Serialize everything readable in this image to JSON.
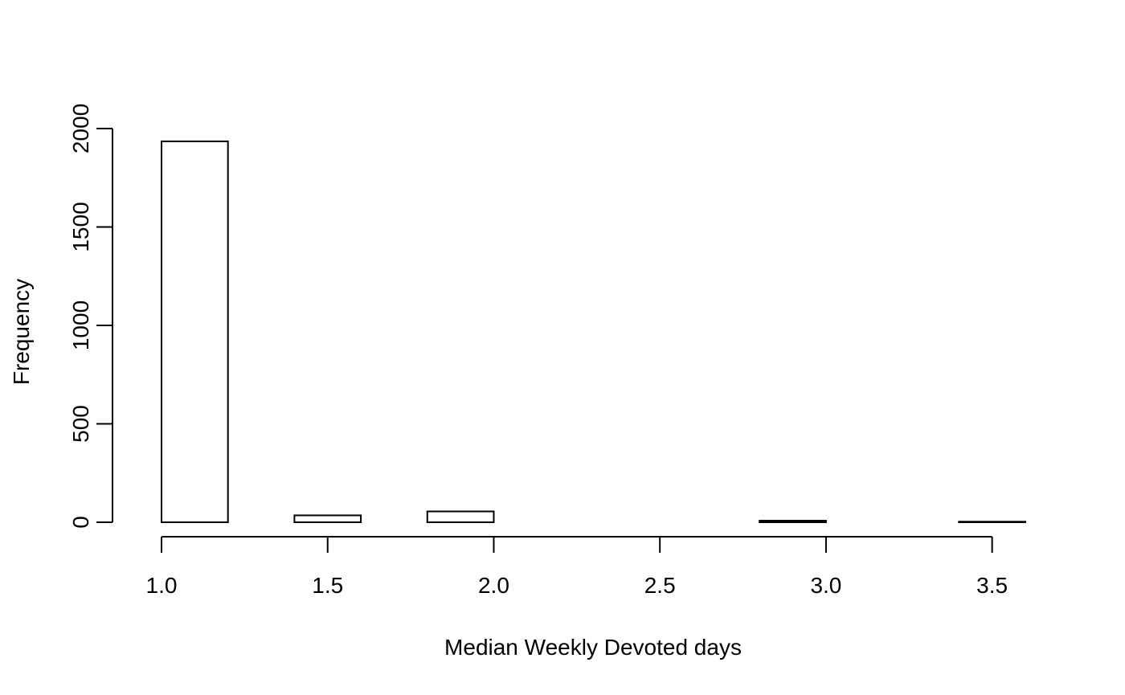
{
  "chart_data": {
    "type": "bar",
    "title": "",
    "xlabel": "Median Weekly Devoted days",
    "ylabel": "Frequency",
    "bins": [
      {
        "start": 1.0,
        "end": 1.2,
        "count": 1935
      },
      {
        "start": 1.2,
        "end": 1.4,
        "count": 0
      },
      {
        "start": 1.4,
        "end": 1.6,
        "count": 35
      },
      {
        "start": 1.6,
        "end": 1.8,
        "count": 0
      },
      {
        "start": 1.8,
        "end": 2.0,
        "count": 55
      },
      {
        "start": 2.0,
        "end": 2.2,
        "count": 0
      },
      {
        "start": 2.2,
        "end": 2.4,
        "count": 0
      },
      {
        "start": 2.4,
        "end": 2.6,
        "count": 0
      },
      {
        "start": 2.6,
        "end": 2.8,
        "count": 0
      },
      {
        "start": 2.8,
        "end": 3.0,
        "count": 8
      },
      {
        "start": 3.0,
        "end": 3.2,
        "count": 0
      },
      {
        "start": 3.2,
        "end": 3.4,
        "count": 0
      },
      {
        "start": 3.4,
        "end": 3.6,
        "count": 3
      }
    ],
    "xlim": [
      1.0,
      3.6
    ],
    "ylim": [
      0,
      2000
    ],
    "x_ticks": [
      1.0,
      1.5,
      2.0,
      2.5,
      3.0,
      3.5
    ],
    "x_tick_labels": [
      "1.0",
      "1.5",
      "2.0",
      "2.5",
      "3.0",
      "3.5"
    ],
    "y_ticks": [
      0,
      500,
      1000,
      1500,
      2000
    ],
    "y_tick_labels": [
      "0",
      "500",
      "1000",
      "1500",
      "2000"
    ],
    "grid": false,
    "legend": "none",
    "bar_fill": "#ffffff",
    "bar_stroke": "#000000"
  }
}
